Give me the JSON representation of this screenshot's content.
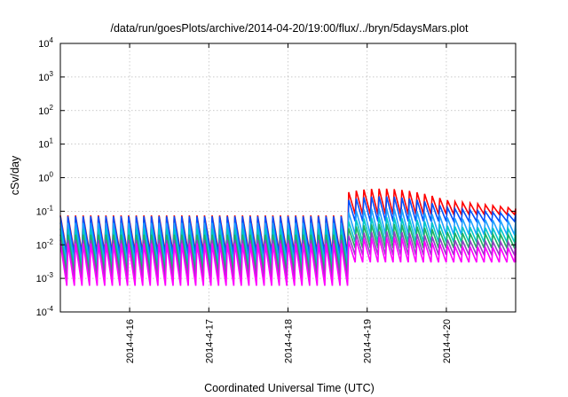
{
  "chart_data": {
    "type": "line",
    "title": "/data/run/goesPlots/archive/2014-04-20/19:00/flux/../bryn/5daysMars.plot",
    "xlabel": "Coordinated Universal Time (UTC)",
    "ylabel": "cSv/day",
    "yscale": "log",
    "ylim": [
      0.0001,
      10000
    ],
    "ytick_exponents": [
      "-4",
      "-3",
      "-2",
      "-1",
      "0",
      "1",
      "2",
      "3",
      "4"
    ],
    "ytick_base": "10",
    "xlim": [
      "2014-04-15 03:00",
      "2014-04-20 21:00"
    ],
    "xticks": [
      {
        "label": "2014-4-16",
        "x": "2014-04-16 00:00"
      },
      {
        "label": "2014-4-17",
        "x": "2014-04-17 00:00"
      },
      {
        "label": "2014-4-18",
        "x": "2014-04-18 00:00"
      },
      {
        "label": "2014-4-19",
        "x": "2014-04-19 00:00"
      },
      {
        "label": "2014-4-20",
        "x": "2014-04-20 00:00"
      }
    ],
    "grid": true,
    "legend": "none",
    "cycle_hours": 2.3,
    "step_time": "2014-04-18 16:30",
    "series": [
      {
        "color": "#ff0000",
        "peak_before": 0.075,
        "trough_before": 0.006,
        "peak_after": 0.6,
        "trough_after": 0.08,
        "end_peak": 0.12
      },
      {
        "color": "#0050ff",
        "peak_before": 0.07,
        "trough_before": 0.005,
        "peak_after": 0.35,
        "trough_after": 0.05,
        "end_peak": 0.08
      },
      {
        "color": "#20a0ff",
        "peak_before": 0.045,
        "trough_before": 0.003,
        "peak_after": 0.15,
        "trough_after": 0.02,
        "end_peak": 0.05
      },
      {
        "color": "#00c8c8",
        "peak_before": 0.03,
        "trough_before": 0.002,
        "peak_after": 0.08,
        "trough_after": 0.012,
        "end_peak": 0.03
      },
      {
        "color": "#20b060",
        "peak_before": 0.02,
        "trough_before": 0.0015,
        "peak_after": 0.05,
        "trough_after": 0.008,
        "end_peak": 0.02
      },
      {
        "color": "#9040c0",
        "peak_before": 0.014,
        "trough_before": 0.001,
        "peak_after": 0.03,
        "trough_after": 0.005,
        "end_peak": 0.012
      },
      {
        "color": "#ff00ff",
        "peak_before": 0.011,
        "trough_before": 0.0006,
        "peak_after": 0.02,
        "trough_after": 0.003,
        "end_peak": 0.008
      }
    ]
  }
}
